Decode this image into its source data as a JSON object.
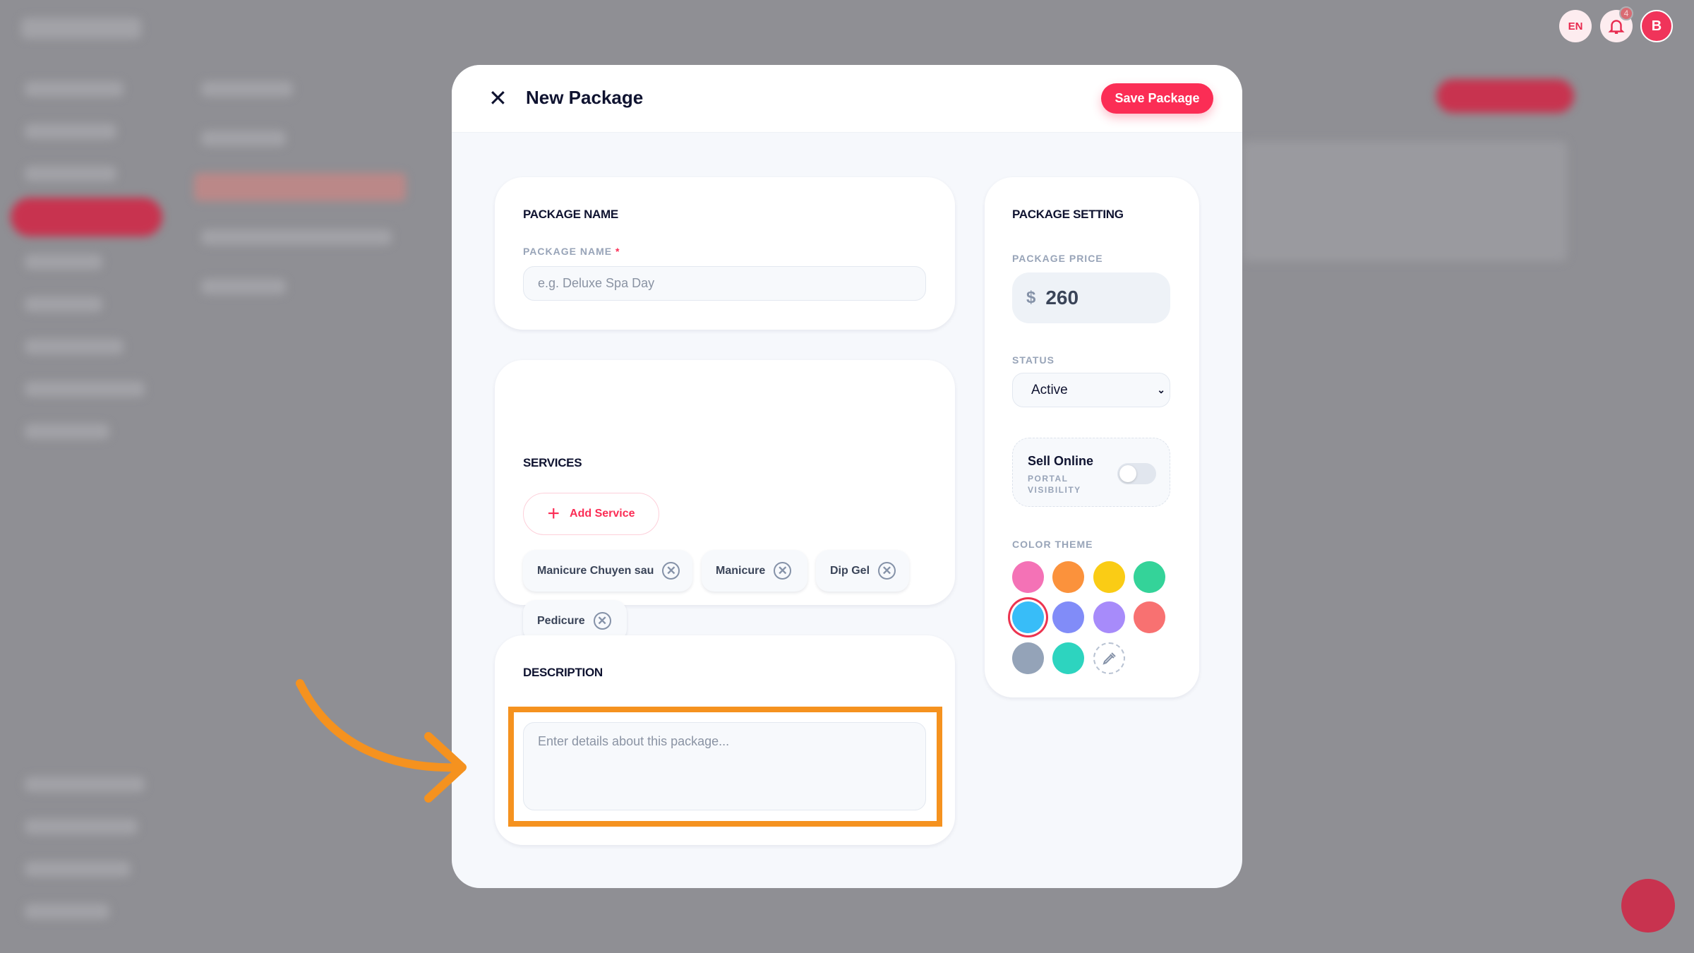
{
  "topbar": {
    "language": "EN",
    "notifications_count": "4",
    "avatar_initial": "B"
  },
  "modal": {
    "title": "New Package",
    "save_label": "Save Package",
    "package_name": {
      "heading": "PACKAGE NAME",
      "label": "PACKAGE NAME",
      "required_mark": "*",
      "placeholder": "e.g. Deluxe Spa Day",
      "value": ""
    },
    "services": {
      "heading": "SERVICES",
      "add_label": "Add Service",
      "items": [
        "Manicure Chuyen sau",
        "Manicure",
        "Dip Gel",
        "Pedicure"
      ]
    },
    "description": {
      "heading": "DESCRIPTION",
      "placeholder": "Enter details about this package...",
      "value": ""
    },
    "settings": {
      "heading": "PACKAGE SETTING",
      "price_label": "PACKAGE PRICE",
      "currency": "$",
      "price": "260",
      "status_label": "STATUS",
      "status_value": "Active",
      "sell_online": {
        "title": "Sell Online",
        "subtitle": "PORTAL VISIBILITY",
        "enabled": false
      },
      "color_label": "COLOR THEME",
      "colors": [
        "#f472b6",
        "#fb923c",
        "#facc15",
        "#34d399",
        "#38bdf8",
        "#818cf8",
        "#a78bfa",
        "#f87171",
        "#94a3b8",
        "#2dd4bf"
      ],
      "selected_color": "#38bdf8",
      "custom_color_icon": "eyedropper-icon"
    }
  },
  "highlight_color": "#f5921f"
}
